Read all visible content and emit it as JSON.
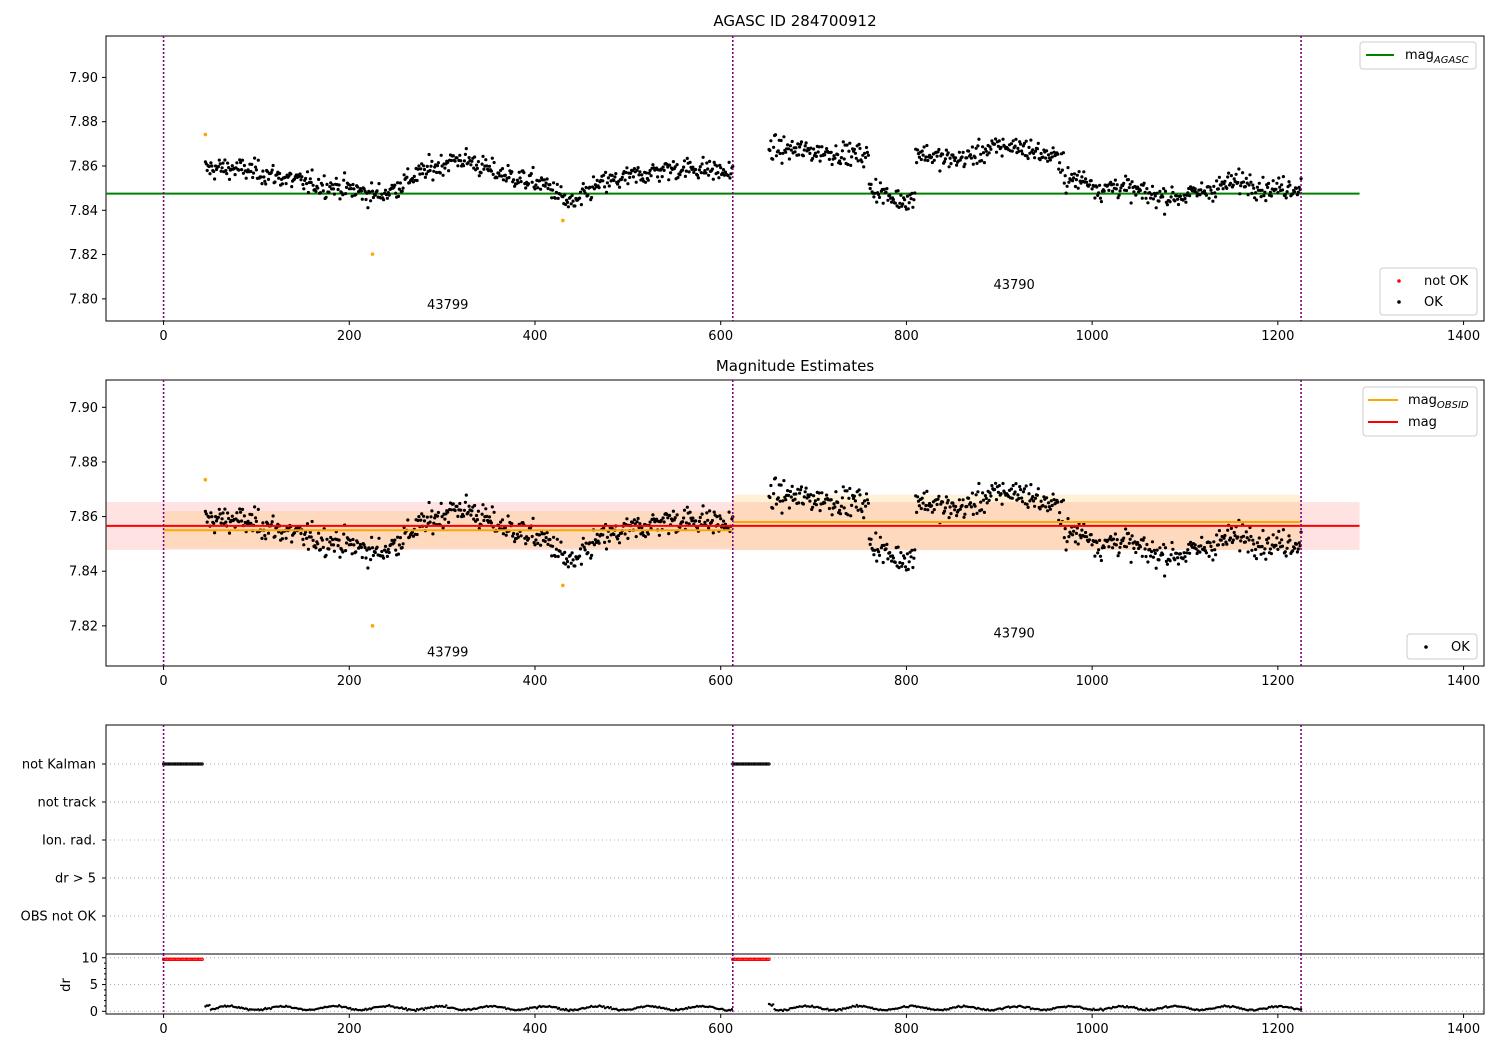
{
  "chart_data": [
    {
      "type": "scatter",
      "title": "AGASC ID 284700912",
      "xlim": [
        -62,
        1422
      ],
      "ylim": [
        7.79,
        7.9187
      ],
      "xticks": [
        "0",
        "200",
        "400",
        "600",
        "800",
        "1000",
        "1200",
        "1400"
      ],
      "yticks": [
        "7.80",
        "7.82",
        "7.84",
        "7.86",
        "7.88",
        "7.90"
      ],
      "obs_boundaries": [
        0,
        613,
        1225
      ],
      "obsid_labels": [
        {
          "text": "43799",
          "x": 306,
          "y": 7.7955
        },
        {
          "text": "43790",
          "x": 916,
          "y": 7.8045
        }
      ],
      "lines": [
        {
          "name": "mag_AGASC",
          "value": 7.8475,
          "x_range": [
            -62,
            1288
          ],
          "color": "#008000"
        }
      ],
      "outliers": [
        [
          45,
          7.8742
        ],
        [
          225,
          7.8202
        ],
        [
          430,
          7.8354
        ]
      ],
      "legend_top": {
        "position": "top-right",
        "label": "mag",
        "subscript": "AGASC",
        "color": "#008000"
      },
      "legend_bottom": {
        "position": "bottom-right",
        "entries": [
          {
            "label": "not OK",
            "color": "#ff0000"
          },
          {
            "label": "OK",
            "color": "#000000"
          }
        ]
      },
      "segments_note": "black points OK, orange points outliers",
      "series": [
        {
          "x_range": [
            45,
            613
          ],
          "mean": 7.855,
          "amplitude": 0.006,
          "noise": 0.0065
        },
        {
          "x_range": [
            652,
            1225
          ],
          "mean": 7.858,
          "amplitude": 0.009,
          "noise": 0.0065
        }
      ]
    },
    {
      "type": "scatter",
      "title": "Magnitude Estimates",
      "xlim": [
        -62,
        1422
      ],
      "ylim": [
        7.8053,
        7.91
      ],
      "xticks": [
        "0",
        "200",
        "400",
        "600",
        "800",
        "1000",
        "1200",
        "1400"
      ],
      "yticks": [
        "7.82",
        "7.84",
        "7.86",
        "7.88",
        "7.90"
      ],
      "obs_boundaries": [
        0,
        613,
        1225
      ],
      "obsid_labels": [
        {
          "text": "43799",
          "x": 306,
          "y": 7.8087
        },
        {
          "text": "43790",
          "x": 916,
          "y": 7.8158
        }
      ],
      "mag": {
        "value": 7.8566,
        "band": [
          7.8478,
          7.8653
        ],
        "x_range": [
          -62,
          1288
        ],
        "color": "#ff0000"
      },
      "mag_obsid": [
        {
          "x_range": [
            0,
            613
          ],
          "value": 7.855,
          "band": [
            7.8483,
            7.862
          ]
        },
        {
          "x_range": [
            613,
            1225
          ],
          "value": 7.858,
          "band": [
            7.8477,
            7.868
          ]
        }
      ],
      "outliers": [
        [
          45,
          7.8735
        ],
        [
          225,
          7.82
        ],
        [
          430,
          7.8348
        ]
      ],
      "legend_top": {
        "position": "top-right",
        "entries": [
          {
            "label": "mag",
            "subscript": "OBSID",
            "color": "#ffa500"
          },
          {
            "label": "mag",
            "subscript": "",
            "color": "#ff0000"
          }
        ]
      },
      "legend_bottom": {
        "position": "bottom-right",
        "entries": [
          {
            "label": "OK",
            "color": "#000000"
          }
        ]
      }
    },
    {
      "type": "scatter",
      "title": "",
      "xlim": [
        -62,
        1422
      ],
      "categories": [
        "not Kalman",
        "not track",
        "Ion. rad.",
        "dr > 5",
        "OBS not OK"
      ],
      "flags": [
        {
          "category": "not Kalman",
          "x_ranges": [
            [
              0,
              42
            ],
            [
              613,
              652
            ]
          ]
        }
      ],
      "obs_boundaries": [
        0,
        613,
        1225
      ]
    },
    {
      "type": "scatter",
      "title": "",
      "xlim": [
        -62,
        1422
      ],
      "ylim": [
        -0.5,
        10.7
      ],
      "ylabel": "dr",
      "yticks": [
        "0",
        "5",
        "10"
      ],
      "xticks": [
        "0",
        "200",
        "400",
        "600",
        "800",
        "1000",
        "1200",
        "1400"
      ],
      "obs_boundaries": [
        0,
        613,
        1225
      ],
      "clipped": [
        {
          "x_range": [
            0,
            42
          ],
          "value": 9.7
        },
        {
          "x_range": [
            613,
            652
          ],
          "value": 9.7
        }
      ],
      "series": [
        {
          "x_range": [
            45,
            613
          ],
          "mean": 0.6
        },
        {
          "x_range": [
            652,
            1225
          ],
          "mean": 0.6
        }
      ]
    }
  ]
}
